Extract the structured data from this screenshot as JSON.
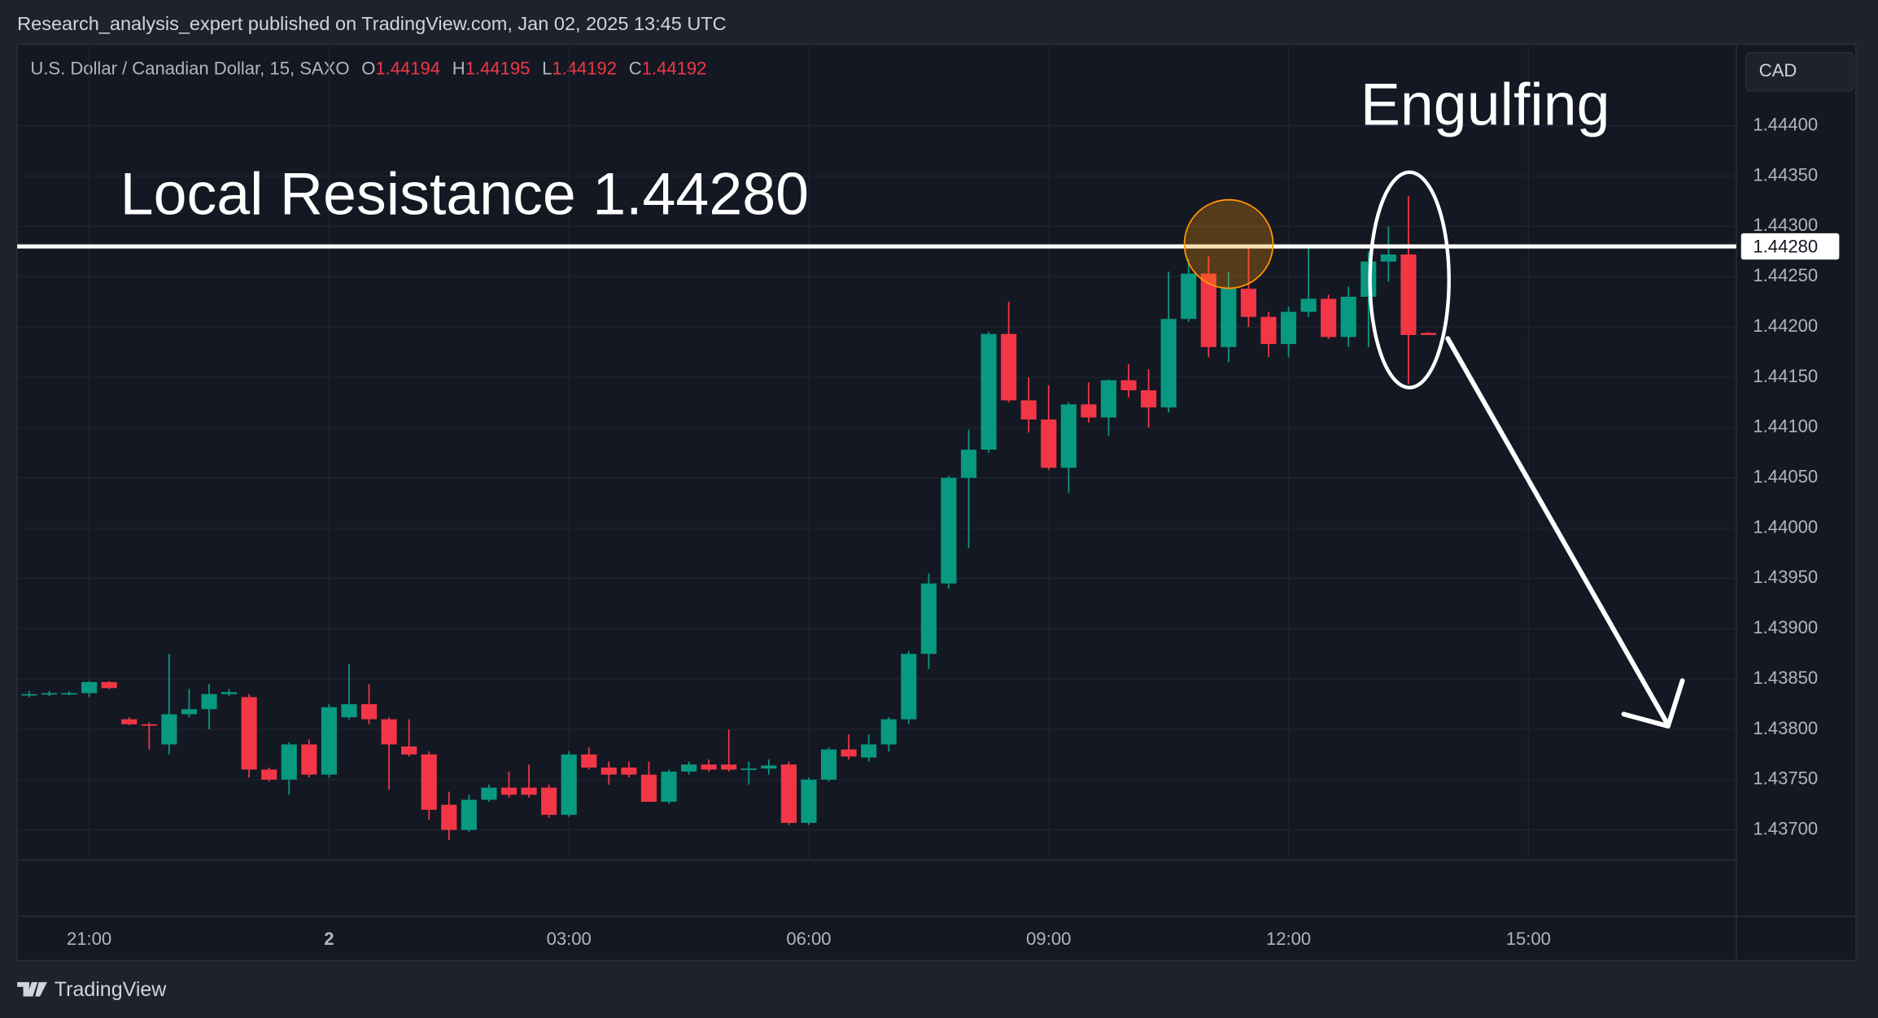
{
  "header": {
    "published": "Research_analysis_expert published on TradingView.com, Jan 02, 2025 13:45 UTC",
    "brand": "TradingView"
  },
  "chart_data": {
    "type": "candlestick",
    "symbol": "U.S. Dollar / Canadian Dollar, 15, SAXO",
    "ohlc_labels": [
      "O",
      "H",
      "L",
      "C"
    ],
    "currency": "CAD",
    "up_color": "#089981",
    "down_color": "#f23645",
    "grid": true,
    "x": [
      "20:15",
      "20:30",
      "20:45",
      "21:00",
      "21:15",
      "21:30",
      "21:45",
      "22:00",
      "22:15",
      "22:30",
      "22:45",
      "23:00",
      "23:15",
      "23:30",
      "23:45",
      "00:00",
      "00:15",
      "00:30",
      "00:45",
      "01:00",
      "01:15",
      "01:30",
      "01:45",
      "02:00",
      "02:15",
      "02:30",
      "02:45",
      "03:00",
      "03:15",
      "03:30",
      "03:45",
      "04:00",
      "04:15",
      "04:30",
      "04:45",
      "05:00",
      "05:15",
      "05:30",
      "05:45",
      "06:00",
      "06:15",
      "06:30",
      "06:45",
      "07:00",
      "07:15",
      "07:30",
      "07:45",
      "08:00",
      "08:15",
      "08:30",
      "08:45",
      "09:00",
      "09:15",
      "09:30",
      "09:45",
      "10:00",
      "10:15",
      "10:30",
      "10:45",
      "11:00",
      "11:15",
      "11:30",
      "11:45",
      "12:00",
      "12:15",
      "12:30",
      "12:45",
      "13:00",
      "13:15",
      "13:30",
      "13:45"
    ],
    "open": [
      1.43835,
      1.43835,
      1.43836,
      1.43836,
      1.43847,
      1.4381,
      1.43805,
      1.43785,
      1.43815,
      1.4382,
      1.43835,
      1.43832,
      1.4376,
      1.4375,
      1.43785,
      1.43755,
      1.43812,
      1.43825,
      1.4381,
      1.43783,
      1.43775,
      1.43725,
      1.437,
      1.4373,
      1.43742,
      1.43742,
      1.43742,
      1.43715,
      1.43775,
      1.43762,
      1.43762,
      1.43755,
      1.43728,
      1.43758,
      1.43765,
      1.43765,
      1.4376,
      1.43761,
      1.43765,
      1.43707,
      1.4375,
      1.4378,
      1.43772,
      1.43785,
      1.4381,
      1.43875,
      1.43945,
      1.4405,
      1.44078,
      1.44193,
      1.44127,
      1.44108,
      1.4406,
      1.44123,
      1.4411,
      1.44147,
      1.44137,
      1.4412,
      1.44208,
      1.44253,
      1.4418,
      1.44238,
      1.4421,
      1.44183,
      1.44215,
      1.44228,
      1.4419,
      1.4423,
      1.44265,
      1.44272,
      1.44194
    ],
    "high": [
      1.43838,
      1.43838,
      1.43838,
      1.43848,
      1.43848,
      1.43812,
      1.43807,
      1.43875,
      1.4384,
      1.43845,
      1.4384,
      1.43835,
      1.43762,
      1.43787,
      1.4379,
      1.43825,
      1.43865,
      1.43845,
      1.43812,
      1.4381,
      1.43778,
      1.43738,
      1.43735,
      1.43745,
      1.43758,
      1.43765,
      1.43745,
      1.43778,
      1.43782,
      1.43768,
      1.43768,
      1.43768,
      1.4376,
      1.43768,
      1.4377,
      1.438,
      1.43768,
      1.4377,
      1.43768,
      1.43752,
      1.43782,
      1.43795,
      1.43795,
      1.43812,
      1.43878,
      1.43955,
      1.44052,
      1.44098,
      1.44195,
      1.44225,
      1.4415,
      1.44142,
      1.44125,
      1.44145,
      1.44148,
      1.44163,
      1.44158,
      1.44255,
      1.44268,
      1.4427,
      1.44255,
      1.44278,
      1.44215,
      1.4422,
      1.44278,
      1.44232,
      1.4424,
      1.44275,
      1.443,
      1.4433,
      1.44195
    ],
    "low": [
      1.43832,
      1.43833,
      1.43834,
      1.43832,
      1.4384,
      1.43804,
      1.4378,
      1.43775,
      1.43812,
      1.438,
      1.43833,
      1.43752,
      1.43748,
      1.43735,
      1.43752,
      1.43752,
      1.4381,
      1.43805,
      1.4374,
      1.43773,
      1.4371,
      1.4369,
      1.43698,
      1.43728,
      1.43732,
      1.43732,
      1.43712,
      1.43713,
      1.4376,
      1.43745,
      1.43752,
      1.43728,
      1.43726,
      1.43755,
      1.43758,
      1.43758,
      1.43745,
      1.43755,
      1.43705,
      1.43705,
      1.43748,
      1.4377,
      1.43768,
      1.43778,
      1.43805,
      1.4386,
      1.4394,
      1.4398,
      1.44075,
      1.44125,
      1.44095,
      1.44058,
      1.44035,
      1.44105,
      1.44092,
      1.4413,
      1.441,
      1.44115,
      1.44205,
      1.4417,
      1.44165,
      1.442,
      1.4417,
      1.4417,
      1.4421,
      1.44188,
      1.4418,
      1.4418,
      1.44245,
      1.44143,
      1.44192
    ],
    "close": [
      1.43835,
      1.43836,
      1.43836,
      1.43847,
      1.43841,
      1.43805,
      1.43804,
      1.43815,
      1.4382,
      1.43835,
      1.43837,
      1.4376,
      1.4375,
      1.43785,
      1.43755,
      1.43822,
      1.43825,
      1.4381,
      1.43785,
      1.43775,
      1.4372,
      1.437,
      1.4373,
      1.43742,
      1.43735,
      1.43735,
      1.43715,
      1.43775,
      1.43762,
      1.43755,
      1.43755,
      1.43728,
      1.43758,
      1.43765,
      1.4376,
      1.4376,
      1.43761,
      1.43764,
      1.43707,
      1.4375,
      1.4378,
      1.43773,
      1.43785,
      1.4381,
      1.43875,
      1.43945,
      1.4405,
      1.44078,
      1.44193,
      1.44127,
      1.44108,
      1.4406,
      1.44123,
      1.4411,
      1.44147,
      1.44137,
      1.4412,
      1.44208,
      1.44253,
      1.4418,
      1.44238,
      1.4421,
      1.44183,
      1.44215,
      1.44228,
      1.4419,
      1.4423,
      1.44265,
      1.44272,
      1.44192,
      1.44192
    ],
    "xlim": [
      "20:06",
      "17:36"
    ],
    "xticks": [
      "21:00",
      {
        "value": "00:00",
        "label": "2"
      },
      "03:00",
      "06:00",
      "09:00",
      "12:00",
      "15:00"
    ],
    "ylim": [
      1.4367,
      1.44481
    ],
    "yticks": [
      {
        "value": 1.437,
        "label": "1.43700"
      },
      {
        "value": 1.4375,
        "label": "1.43750"
      },
      {
        "value": 1.438,
        "label": "1.43800"
      },
      {
        "value": 1.4385,
        "label": "1.43850"
      },
      {
        "value": 1.439,
        "label": "1.43900"
      },
      {
        "value": 1.4395,
        "label": "1.43950"
      },
      {
        "value": 1.44,
        "label": "1.44000"
      },
      {
        "value": 1.4405,
        "label": "1.44050"
      },
      {
        "value": 1.441,
        "label": "1.44100"
      },
      {
        "value": 1.4415,
        "label": "1.44150"
      },
      {
        "value": 1.442,
        "label": "1.44200"
      },
      {
        "value": 1.4425,
        "label": "1.44250"
      },
      {
        "value": 1.443,
        "label": "1.44300"
      },
      {
        "value": 1.4435,
        "label": "1.44350"
      },
      {
        "value": 1.444,
        "label": "1.44400"
      }
    ],
    "resistance": {
      "value": 1.4428,
      "label": "1.44280",
      "text": "Local Resistance 1.44280"
    },
    "pattern": "Engulfing"
  }
}
